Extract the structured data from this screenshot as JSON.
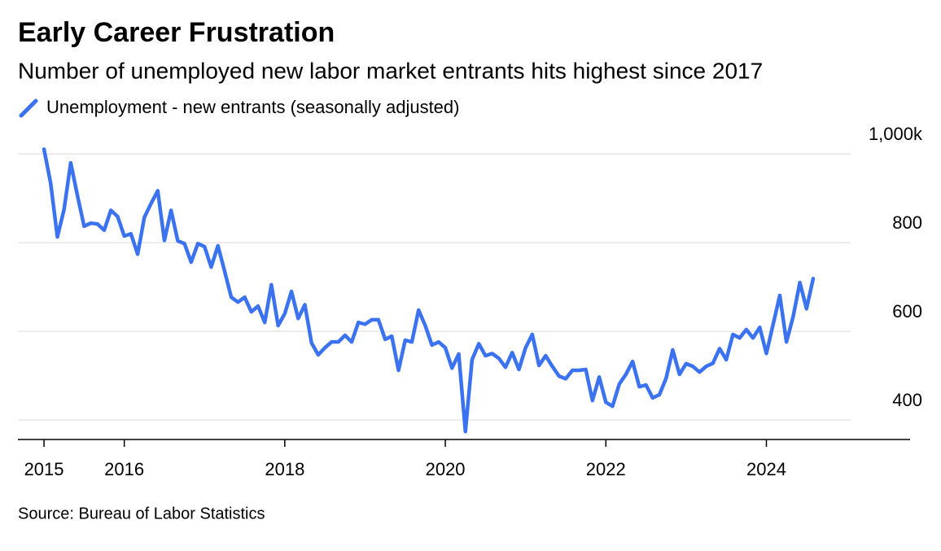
{
  "chart_data": {
    "type": "line",
    "title": "Early Career Frustration",
    "subtitle": "Number of unemployed new labor market entrants hits highest since 2017",
    "source": "Source: Bureau of Labor Statistics",
    "x": [
      2015,
      2015.083,
      2015.167,
      2015.25,
      2015.333,
      2015.417,
      2015.5,
      2015.583,
      2015.667,
      2015.75,
      2015.833,
      2015.917,
      2016,
      2016.083,
      2016.167,
      2016.25,
      2016.333,
      2016.417,
      2016.5,
      2016.583,
      2016.667,
      2016.75,
      2016.833,
      2016.917,
      2017,
      2017.083,
      2017.167,
      2017.25,
      2017.333,
      2017.417,
      2017.5,
      2017.583,
      2017.667,
      2017.75,
      2017.833,
      2017.917,
      2018,
      2018.083,
      2018.167,
      2018.25,
      2018.333,
      2018.417,
      2018.5,
      2018.583,
      2018.667,
      2018.75,
      2018.833,
      2018.917,
      2019,
      2019.083,
      2019.167,
      2019.25,
      2019.333,
      2019.417,
      2019.5,
      2019.583,
      2019.667,
      2019.75,
      2019.833,
      2019.917,
      2020,
      2020.083,
      2020.167,
      2020.25,
      2020.333,
      2020.417,
      2020.5,
      2020.583,
      2020.667,
      2020.75,
      2020.833,
      2020.917,
      2021,
      2021.083,
      2021.167,
      2021.25,
      2021.333,
      2021.417,
      2021.5,
      2021.583,
      2021.667,
      2021.75,
      2021.833,
      2021.917,
      2022,
      2022.083,
      2022.167,
      2022.25,
      2022.333,
      2022.417,
      2022.5,
      2022.583,
      2022.667,
      2022.75,
      2022.833,
      2022.917,
      2023,
      2023.083,
      2023.167,
      2023.25,
      2023.333,
      2023.417,
      2023.5,
      2023.583,
      2023.667,
      2023.75,
      2023.833,
      2023.917,
      2024,
      2024.083,
      2024.167,
      2024.25,
      2024.333,
      2024.417,
      2024.5,
      2024.583
    ],
    "series": [
      {
        "name": "Unemployment - new entrants (seasonally adjusted)",
        "color": "#3a72f0",
        "values": [
          1011,
          934,
          813,
          875,
          980,
          906,
          837,
          844,
          842,
          828,
          873,
          859,
          815,
          820,
          774,
          857,
          888,
          917,
          805,
          873,
          804,
          798,
          756,
          798,
          791,
          745,
          793,
          736,
          677,
          666,
          677,
          644,
          657,
          620,
          705,
          613,
          640,
          690,
          629,
          660,
          574,
          547,
          563,
          576,
          576,
          591,
          576,
          620,
          616,
          626,
          626,
          582,
          589,
          512,
          580,
          576,
          648,
          613,
          569,
          576,
          563,
          517,
          549,
          374,
          536,
          572,
          545,
          550,
          539,
          519,
          552,
          514,
          563,
          593,
          523,
          545,
          521,
          499,
          493,
          512,
          512,
          514,
          444,
          497,
          440,
          431,
          481,
          503,
          532,
          475,
          479,
          450,
          457,
          494,
          558,
          503,
          527,
          521,
          508,
          521,
          528,
          561,
          536,
          593,
          585,
          604,
          585,
          609,
          550,
          615,
          681,
          576,
          633,
          710,
          651,
          719
        ]
      }
    ],
    "xlim": [
      2014.675,
      2025.79
    ],
    "xticks": [
      2015,
      2016,
      2018,
      2020,
      2022,
      2024
    ],
    "ylim": [
      356,
      1072
    ],
    "yticks": [
      400,
      600,
      800,
      {
        "value": 1000,
        "label": "1,000k"
      }
    ],
    "grid": true
  }
}
